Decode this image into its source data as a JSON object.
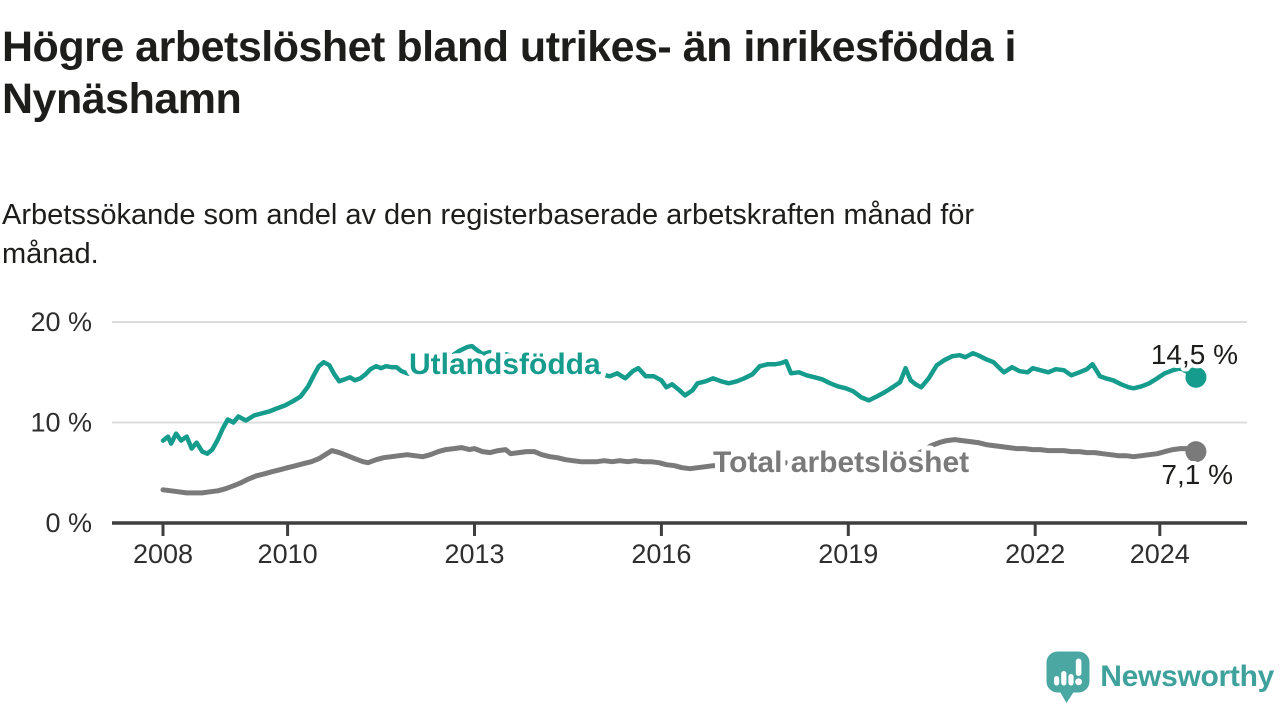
{
  "chart_data": {
    "type": "line",
    "title": "Högre arbetslöshet bland utrikes- än inrikesfödda i Nynäshamn",
    "title_lines": [
      "Högre arbetslöshet bland utrikes- än inrikesfödda i",
      "Nynäshamn"
    ],
    "subtitle": "Arbetssökande som andel av den registerbaserade arbetskraften månad för månad.",
    "subtitle_lines": [
      "Arbetssökande som andel av den registerbaserade arbetskraften månad för",
      "månad."
    ],
    "unit": "%",
    "grid": "horizontal",
    "legend_position": "inline-labels",
    "x_ticks": [
      "2008",
      "2010",
      "2013",
      "2016",
      "2019",
      "2022",
      "2024"
    ],
    "x_tick_years": [
      2008,
      2010,
      2013,
      2016,
      2019,
      2022,
      2024
    ],
    "y_ticks": [
      {
        "value": 0,
        "label": "0 %"
      },
      {
        "value": 10,
        "label": "10 %"
      },
      {
        "value": 20,
        "label": "20 %"
      }
    ],
    "xlim": [
      2007.2,
      2025.4
    ],
    "ylim": [
      0,
      21.5
    ],
    "series": [
      {
        "name": "Utlandsfödda",
        "color": "#169c8d",
        "end_value": 14.5,
        "end_label": "14,5 %",
        "points": [
          [
            2008.0,
            8.2
          ],
          [
            2008.08,
            8.6
          ],
          [
            2008.13,
            7.9
          ],
          [
            2008.21,
            8.9
          ],
          [
            2008.29,
            8.2
          ],
          [
            2008.38,
            8.6
          ],
          [
            2008.46,
            7.4
          ],
          [
            2008.54,
            8.0
          ],
          [
            2008.63,
            7.1
          ],
          [
            2008.71,
            6.9
          ],
          [
            2008.79,
            7.3
          ],
          [
            2008.88,
            8.3
          ],
          [
            2008.96,
            9.4
          ],
          [
            2009.04,
            10.3
          ],
          [
            2009.13,
            10.0
          ],
          [
            2009.21,
            10.6
          ],
          [
            2009.33,
            10.2
          ],
          [
            2009.46,
            10.7
          ],
          [
            2009.58,
            10.9
          ],
          [
            2009.71,
            11.1
          ],
          [
            2009.83,
            11.4
          ],
          [
            2009.96,
            11.7
          ],
          [
            2010.08,
            12.1
          ],
          [
            2010.21,
            12.6
          ],
          [
            2010.33,
            13.6
          ],
          [
            2010.42,
            14.7
          ],
          [
            2010.5,
            15.6
          ],
          [
            2010.58,
            16.0
          ],
          [
            2010.67,
            15.7
          ],
          [
            2010.75,
            14.8
          ],
          [
            2010.83,
            14.1
          ],
          [
            2010.92,
            14.3
          ],
          [
            2011.0,
            14.5
          ],
          [
            2011.08,
            14.2
          ],
          [
            2011.17,
            14.4
          ],
          [
            2011.25,
            14.8
          ],
          [
            2011.33,
            15.3
          ],
          [
            2011.42,
            15.6
          ],
          [
            2011.5,
            15.4
          ],
          [
            2011.58,
            15.6
          ],
          [
            2011.67,
            15.5
          ],
          [
            2011.75,
            15.5
          ],
          [
            2011.83,
            15.1
          ],
          [
            2011.92,
            14.9
          ],
          [
            2012.0,
            14.8
          ],
          [
            2012.13,
            15.1
          ],
          [
            2012.25,
            15.3
          ],
          [
            2012.38,
            15.8
          ],
          [
            2012.5,
            16.2
          ],
          [
            2012.63,
            16.6
          ],
          [
            2012.75,
            17.1
          ],
          [
            2012.88,
            17.5
          ],
          [
            2012.96,
            17.6
          ],
          [
            2013.04,
            17.2
          ],
          [
            2013.13,
            16.8
          ],
          [
            2013.25,
            17.0
          ],
          [
            2013.38,
            16.6
          ],
          [
            2013.5,
            16.8
          ],
          [
            2013.63,
            16.6
          ],
          [
            2013.75,
            16.4
          ],
          [
            2013.88,
            16.0
          ],
          [
            2014.0,
            15.7
          ],
          [
            2014.13,
            15.3
          ],
          [
            2014.25,
            15.1
          ],
          [
            2014.42,
            14.8
          ],
          [
            2014.54,
            14.7
          ],
          [
            2014.67,
            14.9
          ],
          [
            2014.79,
            14.6
          ],
          [
            2014.92,
            14.7
          ],
          [
            2015.04,
            14.8
          ],
          [
            2015.17,
            14.6
          ],
          [
            2015.29,
            14.9
          ],
          [
            2015.42,
            14.4
          ],
          [
            2015.54,
            15.1
          ],
          [
            2015.63,
            15.4
          ],
          [
            2015.75,
            14.6
          ],
          [
            2015.88,
            14.6
          ],
          [
            2016.0,
            14.2
          ],
          [
            2016.08,
            13.5
          ],
          [
            2016.17,
            13.8
          ],
          [
            2016.29,
            13.2
          ],
          [
            2016.38,
            12.7
          ],
          [
            2016.5,
            13.2
          ],
          [
            2016.58,
            13.9
          ],
          [
            2016.71,
            14.1
          ],
          [
            2016.83,
            14.4
          ],
          [
            2016.96,
            14.1
          ],
          [
            2017.08,
            13.9
          ],
          [
            2017.21,
            14.1
          ],
          [
            2017.33,
            14.4
          ],
          [
            2017.46,
            14.8
          ],
          [
            2017.58,
            15.6
          ],
          [
            2017.71,
            15.8
          ],
          [
            2017.83,
            15.8
          ],
          [
            2017.92,
            15.9
          ],
          [
            2018.0,
            16.1
          ],
          [
            2018.08,
            14.9
          ],
          [
            2018.21,
            15.0
          ],
          [
            2018.33,
            14.7
          ],
          [
            2018.46,
            14.5
          ],
          [
            2018.58,
            14.3
          ],
          [
            2018.71,
            13.9
          ],
          [
            2018.83,
            13.6
          ],
          [
            2018.96,
            13.4
          ],
          [
            2019.08,
            13.1
          ],
          [
            2019.21,
            12.5
          ],
          [
            2019.33,
            12.2
          ],
          [
            2019.46,
            12.6
          ],
          [
            2019.58,
            13.0
          ],
          [
            2019.71,
            13.5
          ],
          [
            2019.83,
            14.0
          ],
          [
            2019.92,
            15.4
          ],
          [
            2020.0,
            14.2
          ],
          [
            2020.08,
            13.8
          ],
          [
            2020.17,
            13.5
          ],
          [
            2020.29,
            14.4
          ],
          [
            2020.42,
            15.7
          ],
          [
            2020.54,
            16.2
          ],
          [
            2020.67,
            16.6
          ],
          [
            2020.79,
            16.7
          ],
          [
            2020.88,
            16.5
          ],
          [
            2021.0,
            16.9
          ],
          [
            2021.08,
            16.7
          ],
          [
            2021.21,
            16.3
          ],
          [
            2021.33,
            16.0
          ],
          [
            2021.46,
            15.2
          ],
          [
            2021.5,
            15.0
          ],
          [
            2021.63,
            15.5
          ],
          [
            2021.75,
            15.1
          ],
          [
            2021.88,
            15.0
          ],
          [
            2021.96,
            15.4
          ],
          [
            2022.08,
            15.2
          ],
          [
            2022.21,
            15.0
          ],
          [
            2022.33,
            15.3
          ],
          [
            2022.46,
            15.2
          ],
          [
            2022.58,
            14.7
          ],
          [
            2022.71,
            15.0
          ],
          [
            2022.83,
            15.3
          ],
          [
            2022.92,
            15.8
          ],
          [
            2023.04,
            14.6
          ],
          [
            2023.13,
            14.4
          ],
          [
            2023.25,
            14.2
          ],
          [
            2023.38,
            13.8
          ],
          [
            2023.5,
            13.5
          ],
          [
            2023.58,
            13.4
          ],
          [
            2023.71,
            13.6
          ],
          [
            2023.83,
            13.9
          ],
          [
            2023.96,
            14.4
          ],
          [
            2024.08,
            14.9
          ],
          [
            2024.21,
            15.2
          ],
          [
            2024.33,
            15.4
          ],
          [
            2024.42,
            15.1
          ],
          [
            2024.5,
            14.8
          ],
          [
            2024.58,
            14.5
          ]
        ]
      },
      {
        "name": "Total arbetslöshet",
        "color": "#7a7a7a",
        "end_value": 7.1,
        "end_label": "7,1 %",
        "points": [
          [
            2008.0,
            3.3
          ],
          [
            2008.13,
            3.2
          ],
          [
            2008.25,
            3.1
          ],
          [
            2008.38,
            3.0
          ],
          [
            2008.5,
            3.0
          ],
          [
            2008.63,
            3.0
          ],
          [
            2008.75,
            3.1
          ],
          [
            2008.88,
            3.2
          ],
          [
            2009.0,
            3.4
          ],
          [
            2009.13,
            3.7
          ],
          [
            2009.25,
            4.0
          ],
          [
            2009.38,
            4.4
          ],
          [
            2009.5,
            4.7
          ],
          [
            2009.63,
            4.9
          ],
          [
            2009.75,
            5.1
          ],
          [
            2009.88,
            5.3
          ],
          [
            2010.0,
            5.5
          ],
          [
            2010.13,
            5.7
          ],
          [
            2010.25,
            5.9
          ],
          [
            2010.38,
            6.1
          ],
          [
            2010.5,
            6.4
          ],
          [
            2010.63,
            6.9
          ],
          [
            2010.71,
            7.2
          ],
          [
            2010.83,
            7.0
          ],
          [
            2010.96,
            6.7
          ],
          [
            2011.08,
            6.4
          ],
          [
            2011.21,
            6.1
          ],
          [
            2011.29,
            6.0
          ],
          [
            2011.42,
            6.3
          ],
          [
            2011.54,
            6.5
          ],
          [
            2011.67,
            6.6
          ],
          [
            2011.79,
            6.7
          ],
          [
            2011.92,
            6.8
          ],
          [
            2012.04,
            6.7
          ],
          [
            2012.17,
            6.6
          ],
          [
            2012.29,
            6.8
          ],
          [
            2012.42,
            7.1
          ],
          [
            2012.54,
            7.3
          ],
          [
            2012.67,
            7.4
          ],
          [
            2012.79,
            7.5
          ],
          [
            2012.92,
            7.3
          ],
          [
            2013.0,
            7.4
          ],
          [
            2013.13,
            7.1
          ],
          [
            2013.25,
            7.0
          ],
          [
            2013.38,
            7.2
          ],
          [
            2013.5,
            7.3
          ],
          [
            2013.58,
            6.9
          ],
          [
            2013.71,
            7.0
          ],
          [
            2013.83,
            7.1
          ],
          [
            2013.96,
            7.1
          ],
          [
            2014.08,
            6.8
          ],
          [
            2014.21,
            6.6
          ],
          [
            2014.33,
            6.5
          ],
          [
            2014.46,
            6.3
          ],
          [
            2014.58,
            6.2
          ],
          [
            2014.71,
            6.1
          ],
          [
            2014.83,
            6.1
          ],
          [
            2014.96,
            6.1
          ],
          [
            2015.08,
            6.2
          ],
          [
            2015.21,
            6.1
          ],
          [
            2015.33,
            6.2
          ],
          [
            2015.46,
            6.1
          ],
          [
            2015.58,
            6.2
          ],
          [
            2015.71,
            6.1
          ],
          [
            2015.83,
            6.1
          ],
          [
            2015.96,
            6.0
          ],
          [
            2016.08,
            5.8
          ],
          [
            2016.21,
            5.7
          ],
          [
            2016.33,
            5.5
          ],
          [
            2016.46,
            5.4
          ],
          [
            2016.58,
            5.5
          ],
          [
            2016.71,
            5.6
          ],
          [
            2016.83,
            5.7
          ],
          [
            2016.96,
            5.7
          ],
          [
            2017.13,
            5.7
          ],
          [
            2017.29,
            5.8
          ],
          [
            2017.46,
            5.8
          ],
          [
            2017.63,
            5.9
          ],
          [
            2017.79,
            5.9
          ],
          [
            2017.96,
            6.0
          ],
          [
            2018.13,
            6.0
          ],
          [
            2018.29,
            6.1
          ],
          [
            2018.46,
            6.1
          ],
          [
            2018.63,
            6.1
          ],
          [
            2018.79,
            6.2
          ],
          [
            2018.96,
            6.2
          ],
          [
            2019.13,
            6.3
          ],
          [
            2019.29,
            6.3
          ],
          [
            2019.46,
            6.4
          ],
          [
            2019.63,
            6.5
          ],
          [
            2019.79,
            6.5
          ],
          [
            2019.96,
            6.6
          ],
          [
            2020.08,
            6.8
          ],
          [
            2020.21,
            7.2
          ],
          [
            2020.33,
            7.7
          ],
          [
            2020.46,
            8.0
          ],
          [
            2020.58,
            8.2
          ],
          [
            2020.71,
            8.3
          ],
          [
            2020.83,
            8.2
          ],
          [
            2020.96,
            8.1
          ],
          [
            2021.08,
            8.0
          ],
          [
            2021.21,
            7.8
          ],
          [
            2021.33,
            7.7
          ],
          [
            2021.46,
            7.6
          ],
          [
            2021.58,
            7.5
          ],
          [
            2021.71,
            7.4
          ],
          [
            2021.83,
            7.4
          ],
          [
            2021.96,
            7.3
          ],
          [
            2022.08,
            7.3
          ],
          [
            2022.21,
            7.2
          ],
          [
            2022.33,
            7.2
          ],
          [
            2022.46,
            7.2
          ],
          [
            2022.58,
            7.1
          ],
          [
            2022.71,
            7.1
          ],
          [
            2022.83,
            7.0
          ],
          [
            2022.96,
            7.0
          ],
          [
            2023.08,
            6.9
          ],
          [
            2023.21,
            6.8
          ],
          [
            2023.33,
            6.7
          ],
          [
            2023.46,
            6.7
          ],
          [
            2023.58,
            6.6
          ],
          [
            2023.71,
            6.7
          ],
          [
            2023.83,
            6.8
          ],
          [
            2023.96,
            6.9
          ],
          [
            2024.08,
            7.1
          ],
          [
            2024.21,
            7.3
          ],
          [
            2024.33,
            7.4
          ],
          [
            2024.46,
            7.4
          ],
          [
            2024.58,
            7.1
          ]
        ]
      }
    ]
  },
  "colors": {
    "accent_teal": "#169c8d",
    "series_gray": "#7a7a7a",
    "logo_teal": "#4aa7a2",
    "axis": "#3f3f3f",
    "grid": "#dcdcdc",
    "text": "#1d1d1b"
  },
  "logo": {
    "text": "Newsworthy",
    "icon": "bar-chart-speech-bubble"
  }
}
